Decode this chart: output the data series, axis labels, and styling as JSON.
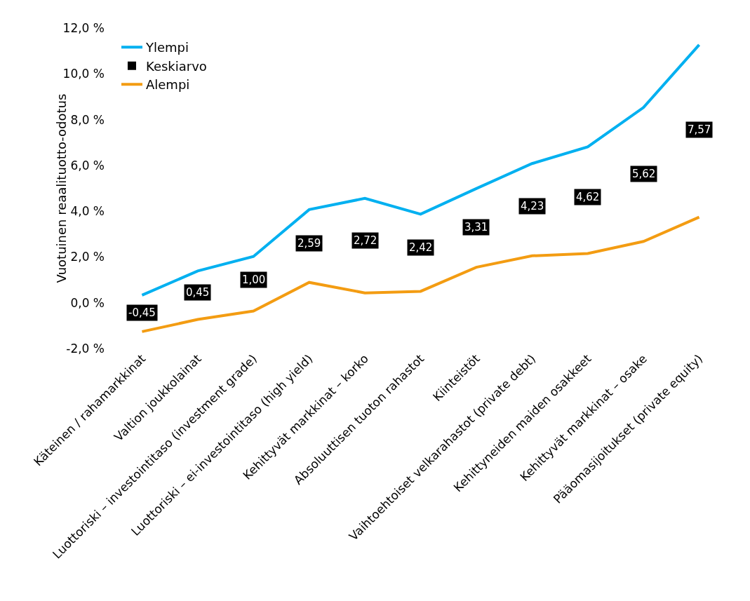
{
  "chart_data": {
    "type": "line",
    "ylabel": "Vuotuinen reaalituotto-odotus",
    "categories": [
      "Käteinen / rahamarkkinat",
      "Valtion joukkolainat",
      "Luottoriski – investointitaso (investment grade)",
      "Luottoriski – ei-investointitaso (high yield)",
      "Kehittyvät markkinat – korko",
      "Absoluuttisen tuoton rahastot",
      "Kiinteistöt",
      "Vaihtoehtoiset velkarahastot (private debt)",
      "Kehittyneiden maiden osakkeet",
      "Kehittyvät markkinat – osake",
      "Pääomasijoitukset (private equity)"
    ],
    "series": [
      {
        "name": "Ylempi",
        "color": "#00b0f0",
        "values": [
          0.33,
          1.39,
          2.02,
          4.07,
          4.56,
          3.87,
          4.99,
          6.08,
          6.81,
          8.53,
          11.27
        ]
      },
      {
        "name": "Keskiarvo",
        "color": "#000000",
        "type": "scatter",
        "marker": "square",
        "values": [
          -0.45,
          0.45,
          1.0,
          2.59,
          2.72,
          2.42,
          3.31,
          4.23,
          4.62,
          5.62,
          7.57
        ],
        "value_labels": [
          "-0,45",
          "0,45",
          "1,00",
          "2,59",
          "2,72",
          "2,42",
          "3,31",
          "4,23",
          "4,62",
          "5,62",
          "7,57"
        ]
      },
      {
        "name": "Alempi",
        "color": "#f39c12",
        "values": [
          -1.26,
          -0.73,
          -0.36,
          0.89,
          0.43,
          0.5,
          1.55,
          2.05,
          2.15,
          2.68,
          3.74
        ]
      }
    ],
    "ylim": [
      -2,
      12
    ],
    "yticks": [
      {
        "value": -2,
        "label": "-2,0 %"
      },
      {
        "value": 0,
        "label": "0,0 %"
      },
      {
        "value": 2,
        "label": "2,0 %"
      },
      {
        "value": 4,
        "label": "4,0 %"
      },
      {
        "value": 6,
        "label": "6,0 %"
      },
      {
        "value": 8,
        "label": "8,0 %"
      },
      {
        "value": 10,
        "label": "10,0 %"
      },
      {
        "value": 12,
        "label": "12,0 %"
      }
    ],
    "grid": false,
    "legend": "top left",
    "marker": "none",
    "line_style": "solid"
  }
}
